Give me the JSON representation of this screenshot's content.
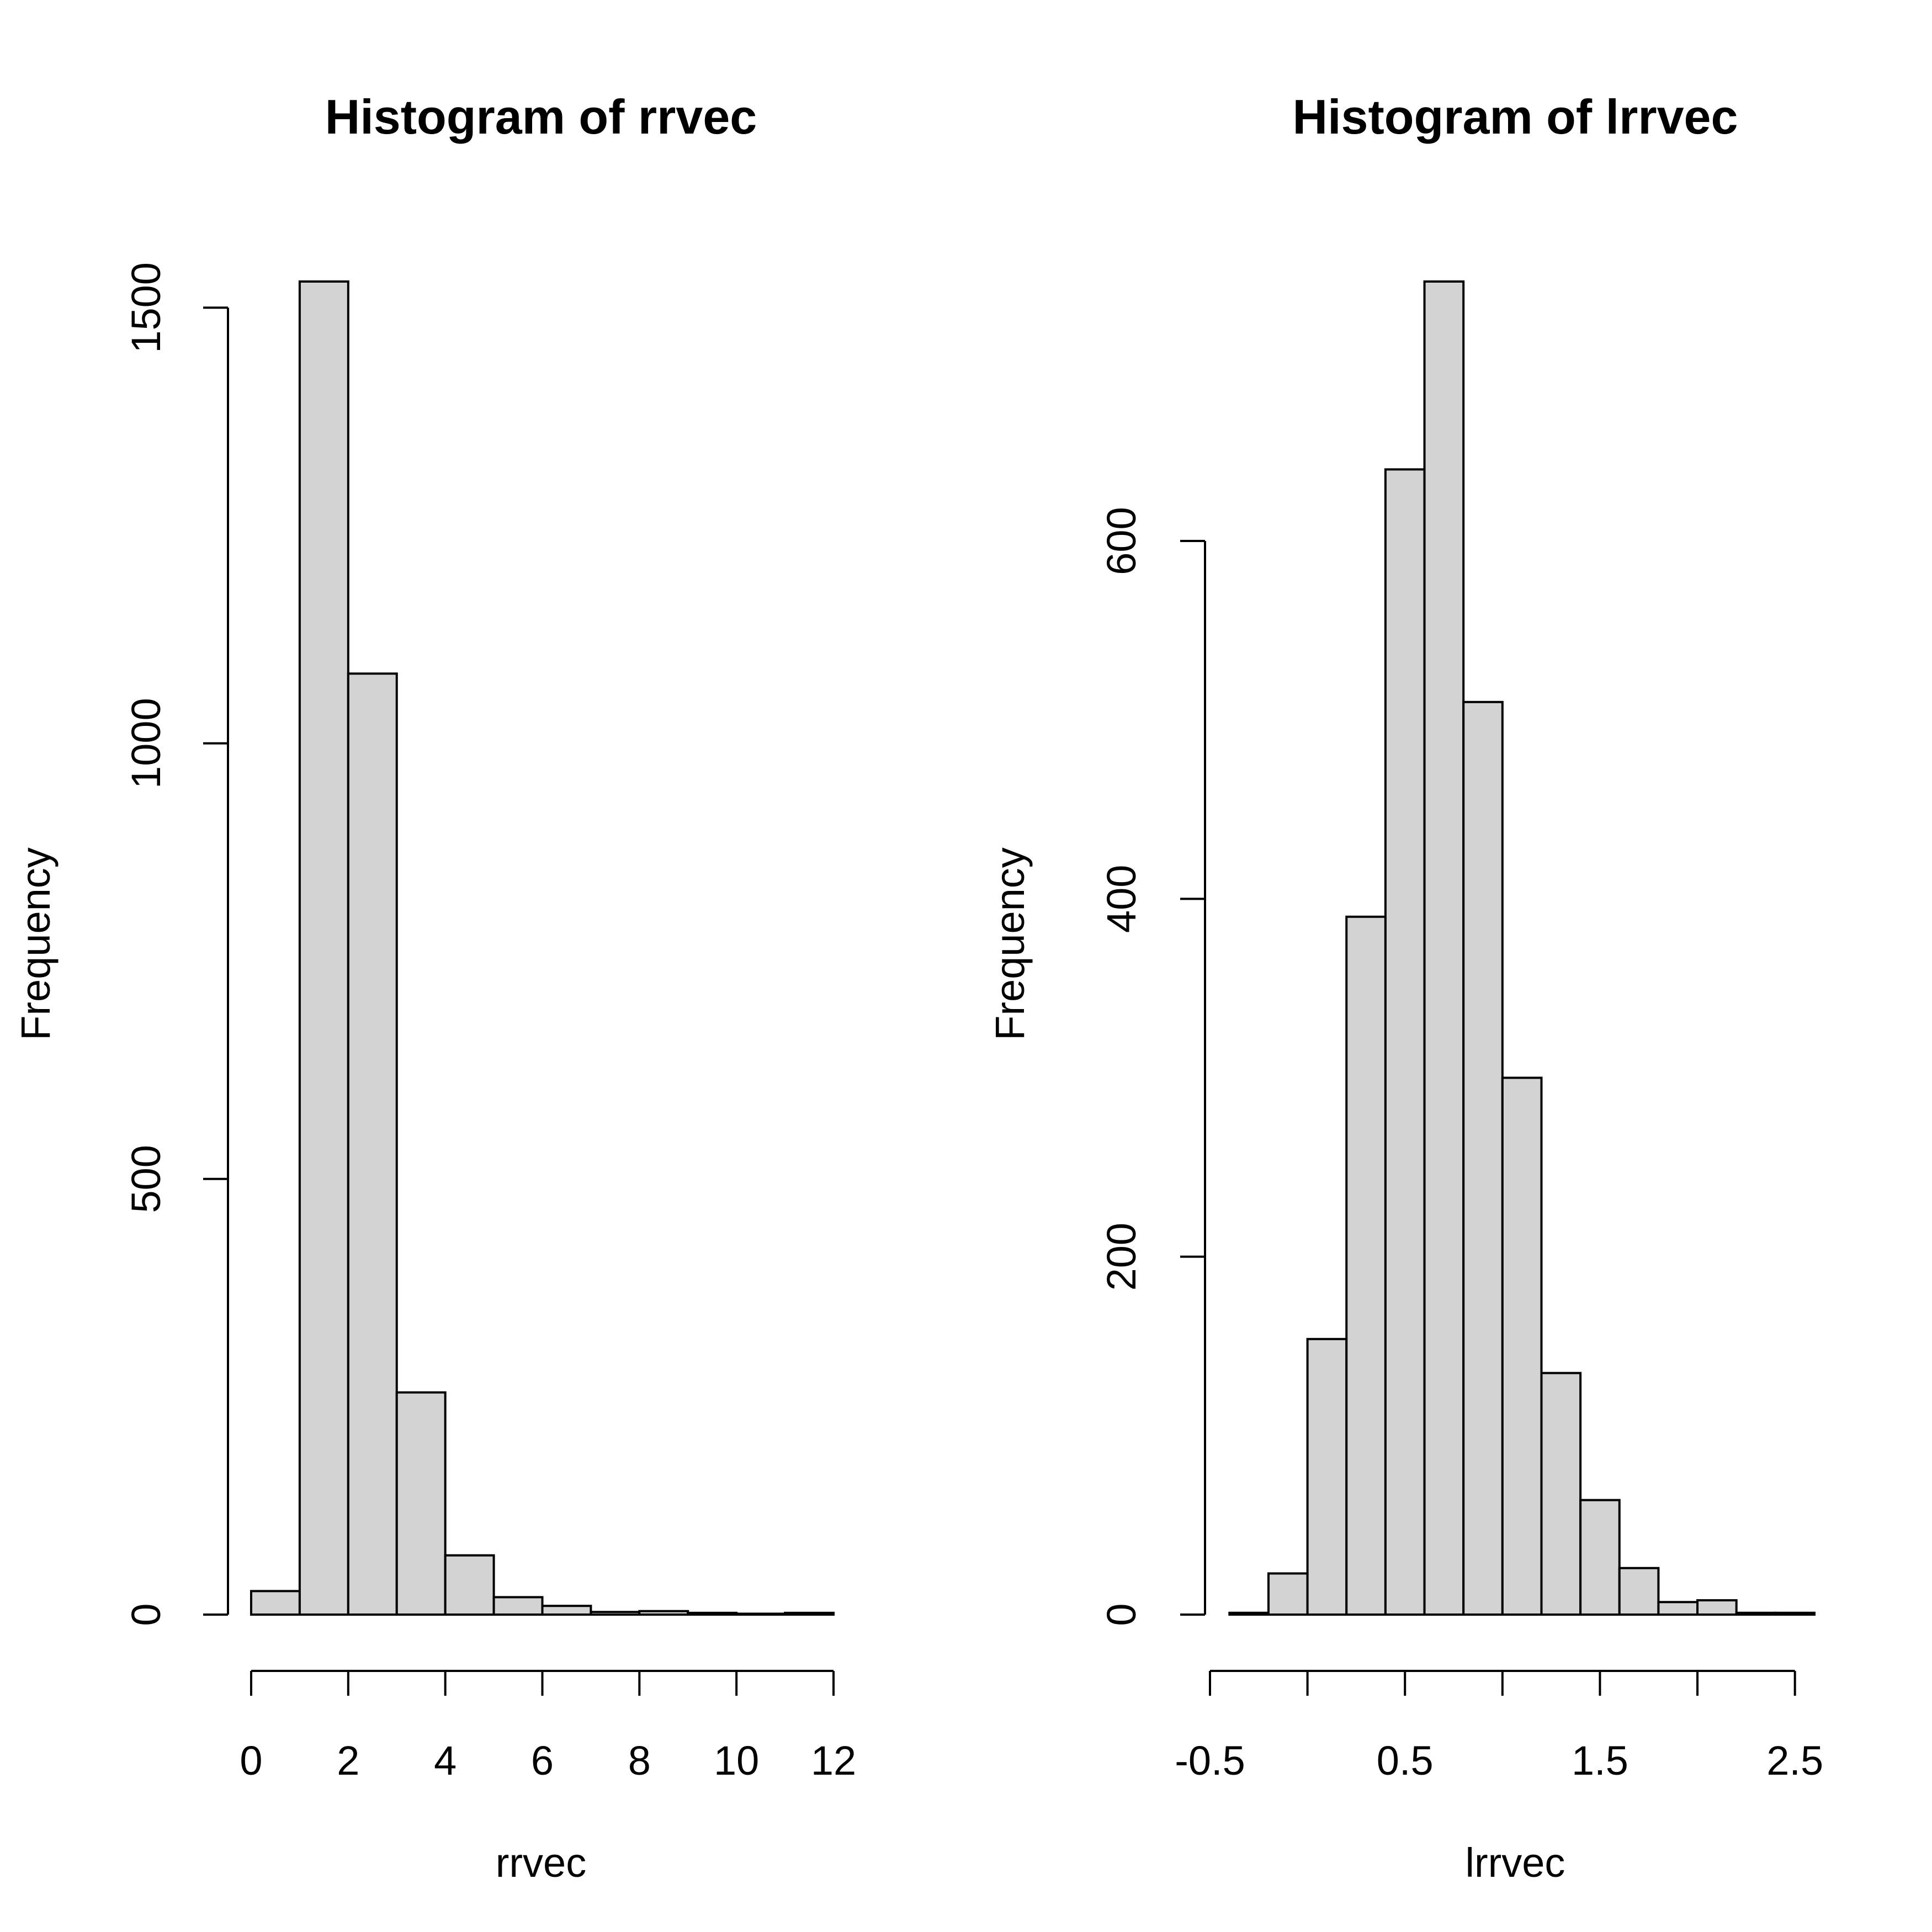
{
  "chart_data": [
    {
      "type": "bar",
      "title": "Histogram of rrvec",
      "xlabel": "rrvec",
      "ylabel": "Frequency",
      "bin_edges": [
        0,
        1,
        2,
        3,
        4,
        5,
        6,
        7,
        8,
        9,
        10,
        11,
        12
      ],
      "values": [
        27,
        1530,
        1080,
        255,
        68,
        20,
        10,
        3,
        4,
        2,
        1,
        2
      ],
      "x_ticks": [
        0,
        2,
        4,
        6,
        8,
        10,
        12
      ],
      "x_tick_labels": [
        "0",
        "2",
        "4",
        "6",
        "8",
        "10",
        "12"
      ],
      "y_ticks": [
        0,
        500,
        1000,
        1500
      ],
      "y_tick_labels": [
        "0",
        "500",
        "1000",
        "1500"
      ],
      "xlim": [
        0,
        12
      ],
      "ylim": [
        0,
        1530
      ],
      "grid": false
    },
    {
      "type": "bar",
      "title": "Histogram of lrrvec",
      "xlabel": "lrrvec",
      "ylabel": "Frequency",
      "bin_edges": [
        -0.4,
        -0.2,
        0,
        0.2,
        0.4,
        0.6,
        0.8,
        1.0,
        1.2,
        1.4,
        1.6,
        1.8,
        2.0,
        2.2,
        2.4,
        2.6
      ],
      "values": [
        1,
        23,
        154,
        390,
        640,
        745,
        510,
        300,
        135,
        64,
        26,
        7,
        8,
        1,
        1
      ],
      "x_ticks": [
        -0.5,
        0,
        0.5,
        1.0,
        1.5,
        2.0,
        2.5
      ],
      "x_tick_labels": [
        "-0.5",
        "",
        "0.5",
        "",
        "1.5",
        "",
        "2.5"
      ],
      "x_minor_ticks": [
        -0.5,
        0,
        0.5,
        1.0,
        1.5,
        2.0,
        2.5
      ],
      "y_ticks": [
        0,
        200,
        400,
        600
      ],
      "y_tick_labels": [
        "0",
        "200",
        "400",
        "600"
      ],
      "xlim": [
        -0.5,
        2.6
      ],
      "ylim": [
        0,
        745
      ],
      "grid": false
    }
  ]
}
